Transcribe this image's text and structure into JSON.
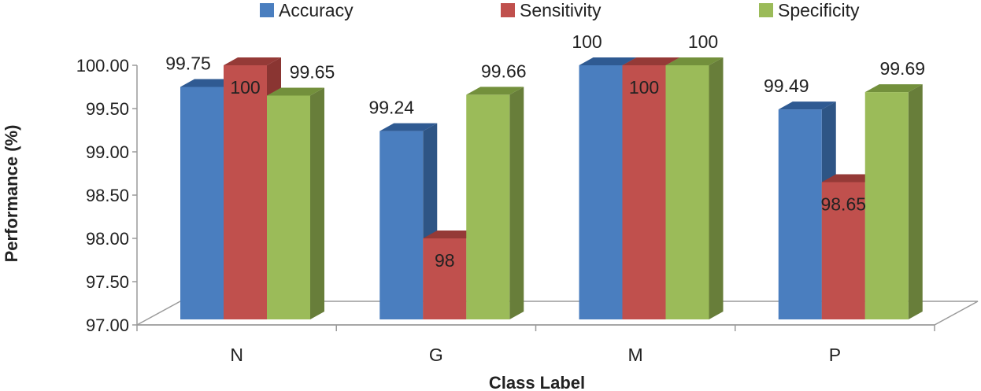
{
  "chart_data": {
    "type": "bar",
    "style": "3d-clustered-column",
    "title": "",
    "xlabel": "Class Label",
    "ylabel": "Performance (%)",
    "ylim": [
      97.0,
      100.0
    ],
    "ytick_step": 0.5,
    "ytick_labels": [
      "97.00",
      "97.50",
      "98.00",
      "98.50",
      "99.00",
      "99.50",
      "100.00"
    ],
    "categories": [
      "N",
      "G",
      "M",
      "P"
    ],
    "legend_position": "top",
    "series": [
      {
        "name": "Accuracy",
        "color": "#4a7ebf",
        "side_color": "#2e5585",
        "top_color": "#2f5a92",
        "values": [
          99.75,
          99.24,
          100,
          99.49
        ],
        "labels": [
          "99.75",
          "99.24",
          "100",
          "99.49"
        ]
      },
      {
        "name": "Sensitivity",
        "color": "#c0504d",
        "side_color": "#8a3532",
        "top_color": "#953a37",
        "values": [
          100,
          98,
          100,
          98.65
        ],
        "labels": [
          "100",
          "98",
          "100",
          "98.65"
        ]
      },
      {
        "name": "Specificity",
        "color": "#9bbb59",
        "side_color": "#687e3a",
        "top_color": "#73903c",
        "values": [
          99.65,
          99.66,
          100,
          99.69
        ],
        "labels": [
          "99.65",
          "99.66",
          "100",
          "99.69"
        ]
      }
    ]
  }
}
